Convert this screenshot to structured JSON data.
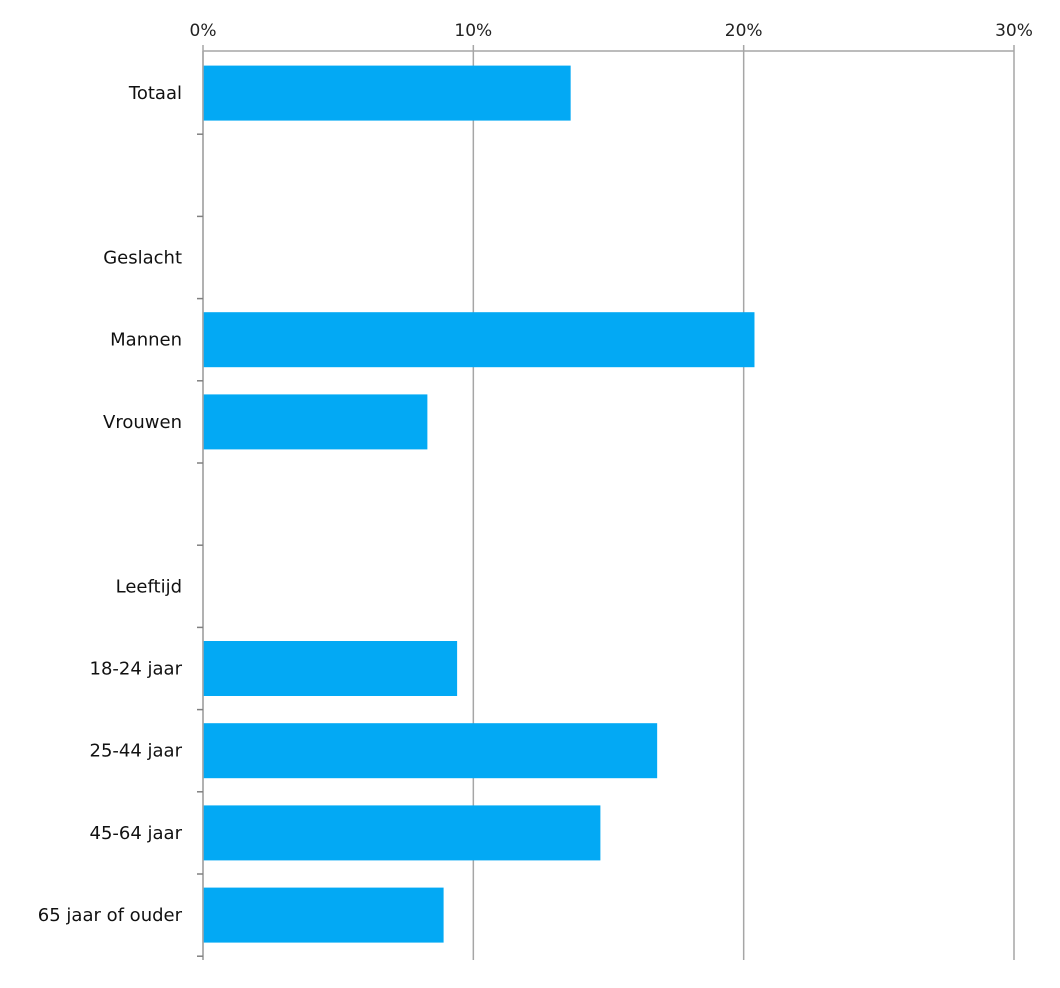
{
  "chart_data": {
    "type": "bar",
    "orientation": "horizontal",
    "categories": [
      "Totaal",
      "",
      "Geslacht",
      "Mannen",
      "Vrouwen",
      "",
      "Leeftijd",
      "18-24 jaar",
      "25-44 jaar",
      "45-64 jaar",
      "65 jaar of ouder"
    ],
    "values": [
      13.6,
      null,
      null,
      20.4,
      8.3,
      null,
      null,
      9.4,
      16.8,
      14.7,
      8.9
    ],
    "xlim": [
      0,
      30
    ],
    "x_ticks": [
      0,
      10,
      20,
      30
    ],
    "x_tick_labels": [
      "0%",
      "10%",
      "20%",
      "30%"
    ],
    "x_axis_position": "top",
    "grid": true,
    "bar_color": "#03A9F4",
    "grid_color": "#A6A6A6"
  }
}
